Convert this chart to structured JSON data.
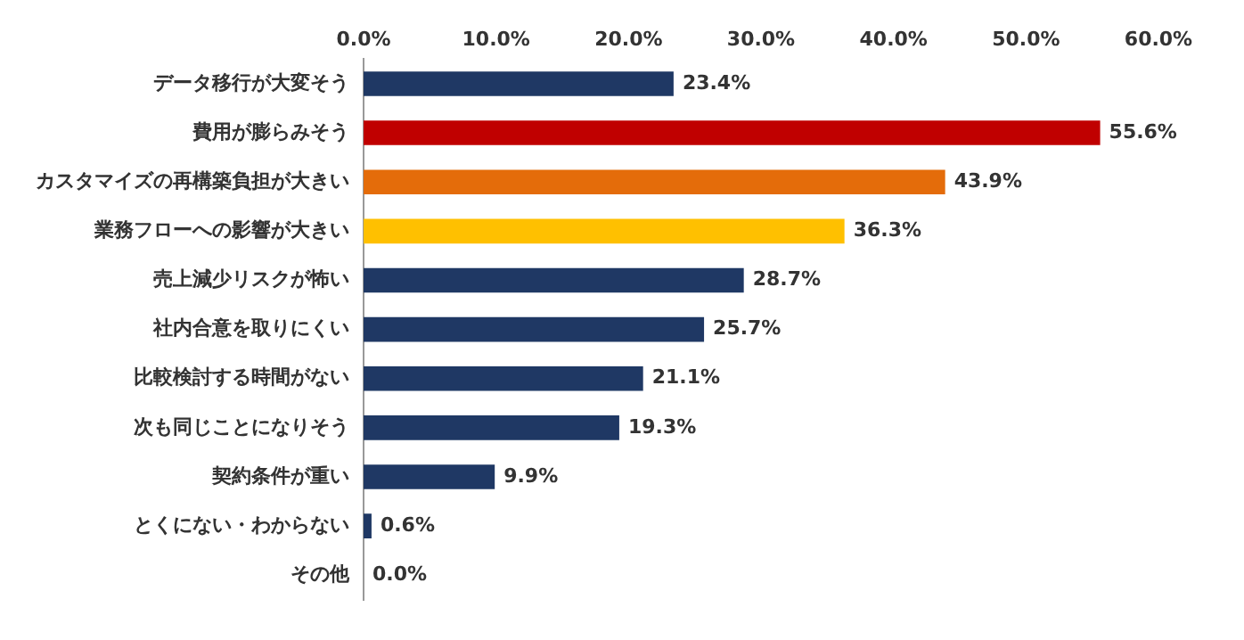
{
  "chart_data": {
    "type": "bar",
    "orientation": "horizontal",
    "categories": [
      "データ移行が大変そう",
      "費用が膨らみそう",
      "カスタマイズの再構築負担が大きい",
      "業務フローへの影響が大きい",
      "売上減少リスクが怖い",
      "社内合意を取りにくい",
      "比較検討する時間がない",
      "次も同じことになりそう",
      "契約条件が重い",
      "とくにない・わからない",
      "その他"
    ],
    "values": [
      23.4,
      55.6,
      43.9,
      36.3,
      28.7,
      25.7,
      21.1,
      19.3,
      9.9,
      0.6,
      0.0
    ],
    "colors": [
      "#1f3864",
      "#c00000",
      "#e46c0a",
      "#ffc000",
      "#1f3864",
      "#1f3864",
      "#1f3864",
      "#1f3864",
      "#1f3864",
      "#1f3864",
      "#1f3864"
    ],
    "value_labels": [
      "23.4%",
      "55.6%",
      "43.9%",
      "36.3%",
      "28.7%",
      "25.7%",
      "21.1%",
      "19.3%",
      "9.9%",
      "0.6%",
      "0.0%"
    ],
    "xlim": [
      0,
      60
    ],
    "xticks": [
      {
        "value": 0,
        "label": "0.0%"
      },
      {
        "value": 10,
        "label": "10.0%"
      },
      {
        "value": 20,
        "label": "20.0%"
      },
      {
        "value": 30,
        "label": "30.0%"
      },
      {
        "value": 40,
        "label": "40.0%"
      },
      {
        "value": 50,
        "label": "50.0%"
      },
      {
        "value": 60,
        "label": "60.0%"
      }
    ],
    "grid": false,
    "legend": false
  }
}
